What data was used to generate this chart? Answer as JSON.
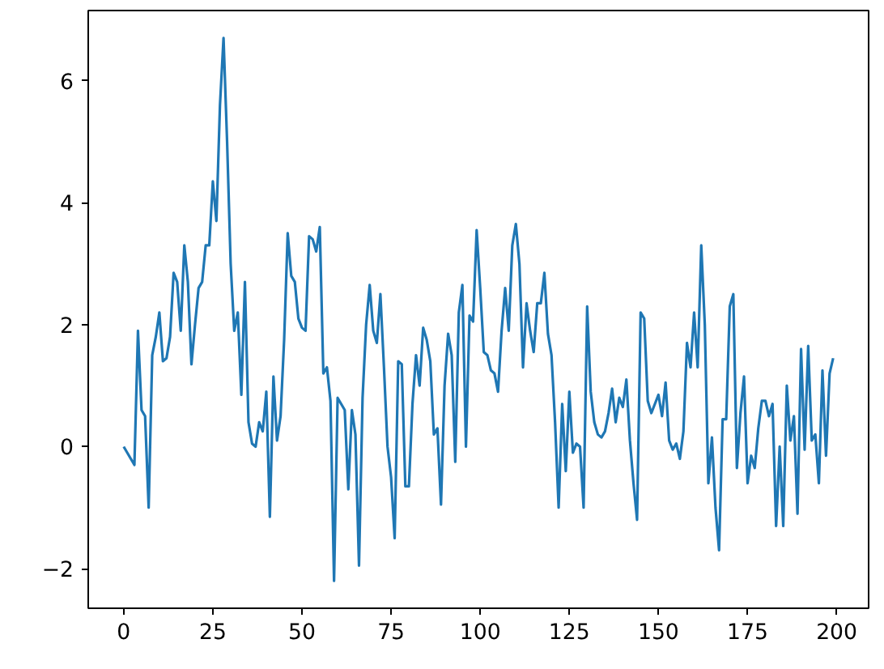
{
  "chart_data": {
    "type": "line",
    "x": [
      0,
      1,
      2,
      3,
      4,
      5,
      6,
      7,
      8,
      9,
      10,
      11,
      12,
      13,
      14,
      15,
      16,
      17,
      18,
      19,
      20,
      21,
      22,
      23,
      24,
      25,
      26,
      27,
      28,
      29,
      30,
      31,
      32,
      33,
      34,
      35,
      36,
      37,
      38,
      39,
      40,
      41,
      42,
      43,
      44,
      45,
      46,
      47,
      48,
      49,
      50,
      51,
      52,
      53,
      54,
      55,
      56,
      57,
      58,
      59,
      60,
      61,
      62,
      63,
      64,
      65,
      66,
      67,
      68,
      69,
      70,
      71,
      72,
      73,
      74,
      75,
      76,
      77,
      78,
      79,
      80,
      81,
      82,
      83,
      84,
      85,
      86,
      87,
      88,
      89,
      90,
      91,
      92,
      93,
      94,
      95,
      96,
      97,
      98,
      99,
      100,
      101,
      102,
      103,
      104,
      105,
      106,
      107,
      108,
      109,
      110,
      111,
      112,
      113,
      114,
      115,
      116,
      117,
      118,
      119,
      120,
      121,
      122,
      123,
      124,
      125,
      126,
      127,
      128,
      129,
      130,
      131,
      132,
      133,
      134,
      135,
      136,
      137,
      138,
      139,
      140,
      141,
      142,
      143,
      144,
      145,
      146,
      147,
      148,
      149,
      150,
      151,
      152,
      153,
      154,
      155,
      156,
      157,
      158,
      159,
      160,
      161,
      162,
      163,
      164,
      165,
      166,
      167,
      168,
      169,
      170,
      171,
      172,
      173,
      174,
      175,
      176,
      177,
      178,
      179,
      180,
      181,
      182,
      183,
      184,
      185,
      186,
      187,
      188,
      189,
      190,
      191,
      192,
      193,
      194,
      195,
      196,
      197,
      198,
      199
    ],
    "series": [
      {
        "color": "#1f77b4",
        "values": [
          0.0,
          -0.1,
          -0.2,
          -0.3,
          1.9,
          0.6,
          0.5,
          -1.0,
          1.5,
          1.8,
          2.2,
          1.4,
          1.45,
          1.8,
          2.85,
          2.7,
          1.9,
          3.3,
          2.7,
          1.35,
          2.0,
          2.6,
          2.7,
          3.3,
          3.3,
          4.35,
          3.7,
          5.6,
          6.7,
          5.0,
          3.0,
          1.9,
          2.2,
          0.85,
          2.7,
          0.4,
          0.05,
          0.0,
          0.4,
          0.25,
          0.9,
          -1.15,
          1.15,
          0.1,
          0.5,
          1.75,
          3.5,
          2.8,
          2.7,
          2.1,
          1.95,
          1.9,
          3.45,
          3.4,
          3.2,
          3.6,
          1.2,
          1.3,
          0.75,
          -2.2,
          0.8,
          0.7,
          0.6,
          -0.7,
          0.6,
          0.2,
          -1.95,
          0.8,
          2.0,
          2.65,
          1.9,
          1.7,
          2.5,
          1.3,
          0.0,
          -0.5,
          -1.5,
          1.4,
          1.35,
          -0.65,
          -0.65,
          0.7,
          1.5,
          1.0,
          1.95,
          1.75,
          1.4,
          0.2,
          0.3,
          -0.95,
          1.0,
          1.85,
          1.5,
          -0.25,
          2.2,
          2.65,
          0.0,
          2.15,
          2.05,
          3.55,
          2.6,
          1.55,
          1.5,
          1.25,
          1.2,
          0.9,
          1.9,
          2.6,
          1.9,
          3.3,
          3.65,
          3.0,
          1.3,
          2.35,
          1.9,
          1.55,
          2.35,
          2.35,
          2.85,
          1.85,
          1.5,
          0.4,
          -1.0,
          0.7,
          -0.4,
          0.9,
          -0.1,
          0.05,
          0.0,
          -1.0,
          2.3,
          0.9,
          0.4,
          0.2,
          0.15,
          0.25,
          0.55,
          0.95,
          0.4,
          0.8,
          0.65,
          1.1,
          0.1,
          -0.6,
          -1.2,
          2.2,
          2.1,
          0.75,
          0.55,
          0.7,
          0.85,
          0.5,
          1.05,
          0.1,
          -0.05,
          0.05,
          -0.2,
          0.25,
          1.7,
          1.3,
          2.2,
          1.3,
          3.3,
          2.0,
          -0.6,
          0.15,
          -1.0,
          -1.7,
          0.45,
          0.45,
          2.3,
          2.5,
          -0.35,
          0.55,
          1.15,
          -0.6,
          -0.15,
          -0.35,
          0.3,
          0.75,
          0.75,
          0.5,
          0.7,
          -1.3,
          0.0,
          -1.3,
          1.0,
          0.1,
          0.5,
          -1.1,
          1.6,
          -0.05,
          1.65,
          0.1,
          0.2,
          -0.6,
          1.25,
          -0.15,
          1.2,
          1.45
        ]
      }
    ],
    "xlim": [
      -9.95,
      208.95
    ],
    "ylim": [
      -2.65,
      7.15
    ],
    "xticks": [
      0,
      25,
      50,
      75,
      100,
      125,
      150,
      175,
      200
    ],
    "yticks": [
      -2,
      0,
      2,
      4,
      6
    ],
    "grid": false,
    "line_style": "solid"
  }
}
